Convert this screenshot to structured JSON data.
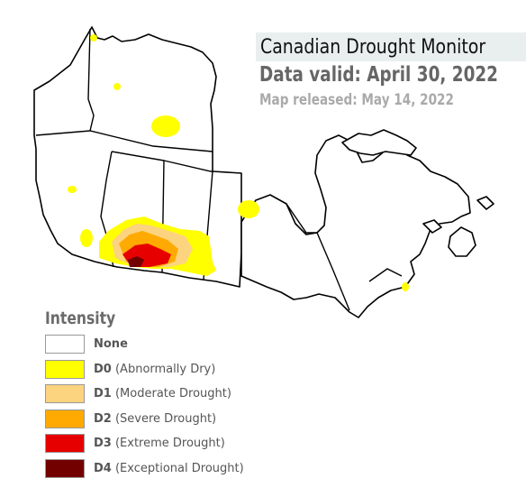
{
  "title": "Canadian Drought Monitor",
  "valid": "Data valid: April 30, 2022",
  "released": "Map released: May 14, 2022",
  "legend": {
    "title": "Intensity",
    "items": [
      {
        "code": "None",
        "label": "",
        "color": "#ffffff"
      },
      {
        "code": "D0",
        "label": "(Abnormally Dry)",
        "color": "#ffff00"
      },
      {
        "code": "D1",
        "label": "(Moderate Drought)",
        "color": "#fcd37f"
      },
      {
        "code": "D2",
        "label": "(Severe Drought)",
        "color": "#ffaa00"
      },
      {
        "code": "D3",
        "label": "(Extreme Drought)",
        "color": "#e60000"
      },
      {
        "code": "D4",
        "label": "(Exceptional Drought)",
        "color": "#730000"
      }
    ]
  }
}
